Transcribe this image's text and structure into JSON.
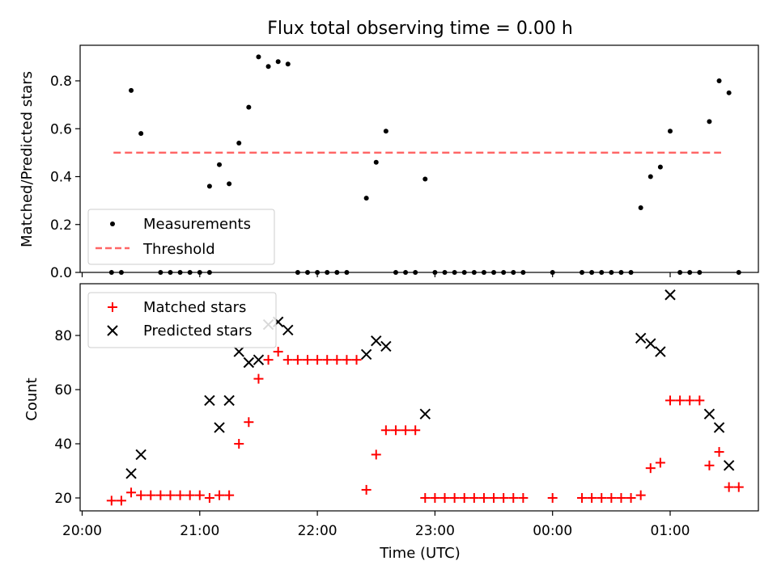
{
  "chart_data": [
    {
      "type": "scatter",
      "title": "Flux total observing time = 0.00 h",
      "ylabel": "Matched/Predicted stars",
      "ylim": [
        0,
        0.95
      ],
      "yticks": [
        "0.0",
        "0.2",
        "0.4",
        "0.6",
        "0.8"
      ],
      "legend": {
        "location": "lower-left",
        "entries": [
          "Measurements",
          "Threshold"
        ]
      },
      "threshold": {
        "value": 0.5,
        "x_start": "20:16",
        "x_end": "01:26",
        "color": "#ff6666"
      },
      "series": [
        {
          "name": "Measurements",
          "marker": "dot",
          "color": "#000000",
          "points": [
            [
              "20:15",
              0.0
            ],
            [
              "20:20",
              0.0
            ],
            [
              "20:25",
              0.76
            ],
            [
              "20:30",
              0.58
            ],
            [
              "20:40",
              0.0
            ],
            [
              "20:45",
              0.0
            ],
            [
              "20:50",
              0.0
            ],
            [
              "20:55",
              0.0
            ],
            [
              "21:00",
              0.0
            ],
            [
              "21:05",
              0.0
            ],
            [
              "21:05",
              0.36
            ],
            [
              "21:10",
              0.45
            ],
            [
              "21:15",
              0.37
            ],
            [
              "21:20",
              0.54
            ],
            [
              "21:25",
              0.69
            ],
            [
              "21:30",
              0.9
            ],
            [
              "21:35",
              0.86
            ],
            [
              "21:40",
              0.88
            ],
            [
              "21:45",
              0.87
            ],
            [
              "21:50",
              0.0
            ],
            [
              "21:55",
              0.0
            ],
            [
              "22:00",
              0.0
            ],
            [
              "22:05",
              0.0
            ],
            [
              "22:10",
              0.0
            ],
            [
              "22:15",
              0.0
            ],
            [
              "22:25",
              0.31
            ],
            [
              "22:30",
              0.46
            ],
            [
              "22:35",
              0.59
            ],
            [
              "22:40",
              0.0
            ],
            [
              "22:45",
              0.0
            ],
            [
              "22:50",
              0.0
            ],
            [
              "22:55",
              0.39
            ],
            [
              "23:00",
              0.0
            ],
            [
              "23:05",
              0.0
            ],
            [
              "23:10",
              0.0
            ],
            [
              "23:15",
              0.0
            ],
            [
              "23:20",
              0.0
            ],
            [
              "23:25",
              0.0
            ],
            [
              "23:30",
              0.0
            ],
            [
              "23:35",
              0.0
            ],
            [
              "23:40",
              0.0
            ],
            [
              "23:45",
              0.0
            ],
            [
              "00:00",
              0.0
            ],
            [
              "00:15",
              0.0
            ],
            [
              "00:20",
              0.0
            ],
            [
              "00:25",
              0.0
            ],
            [
              "00:30",
              0.0
            ],
            [
              "00:35",
              0.0
            ],
            [
              "00:40",
              0.0
            ],
            [
              "00:45",
              0.27
            ],
            [
              "00:50",
              0.4
            ],
            [
              "00:55",
              0.44
            ],
            [
              "01:00",
              0.59
            ],
            [
              "01:05",
              0.0
            ],
            [
              "01:10",
              0.0
            ],
            [
              "01:15",
              0.0
            ],
            [
              "01:20",
              0.63
            ],
            [
              "01:25",
              0.8
            ],
            [
              "01:30",
              0.75
            ],
            [
              "01:35",
              0.0
            ]
          ]
        }
      ]
    },
    {
      "type": "scatter",
      "xlabel": "Time (UTC)",
      "ylabel": "Count",
      "xticks": [
        "20:00",
        "21:00",
        "22:00",
        "23:00",
        "00:00",
        "01:00"
      ],
      "ylim": [
        15,
        98
      ],
      "yticks": [
        "20",
        "40",
        "60",
        "80"
      ],
      "legend": {
        "location": "top-left",
        "entries": [
          "Matched stars",
          "Predicted stars"
        ]
      },
      "series": [
        {
          "name": "Matched stars",
          "marker": "plus",
          "color": "#ff0000",
          "points": [
            [
              "20:15",
              19
            ],
            [
              "20:20",
              19
            ],
            [
              "20:25",
              22
            ],
            [
              "20:30",
              21
            ],
            [
              "20:35",
              21
            ],
            [
              "20:40",
              21
            ],
            [
              "20:45",
              21
            ],
            [
              "20:50",
              21
            ],
            [
              "20:55",
              21
            ],
            [
              "21:00",
              21
            ],
            [
              "21:05",
              20
            ],
            [
              "21:10",
              21
            ],
            [
              "21:15",
              21
            ],
            [
              "21:20",
              40
            ],
            [
              "21:25",
              48
            ],
            [
              "21:30",
              64
            ],
            [
              "21:35",
              71
            ],
            [
              "21:40",
              74
            ],
            [
              "21:45",
              71
            ],
            [
              "21:50",
              71
            ],
            [
              "21:55",
              71
            ],
            [
              "22:00",
              71
            ],
            [
              "22:05",
              71
            ],
            [
              "22:10",
              71
            ],
            [
              "22:15",
              71
            ],
            [
              "22:20",
              71
            ],
            [
              "22:25",
              23
            ],
            [
              "22:30",
              36
            ],
            [
              "22:35",
              45
            ],
            [
              "22:40",
              45
            ],
            [
              "22:45",
              45
            ],
            [
              "22:50",
              45
            ],
            [
              "22:55",
              20
            ],
            [
              "23:00",
              20
            ],
            [
              "23:05",
              20
            ],
            [
              "23:10",
              20
            ],
            [
              "23:15",
              20
            ],
            [
              "23:20",
              20
            ],
            [
              "23:25",
              20
            ],
            [
              "23:30",
              20
            ],
            [
              "23:35",
              20
            ],
            [
              "23:40",
              20
            ],
            [
              "23:45",
              20
            ],
            [
              "00:00",
              20
            ],
            [
              "00:15",
              20
            ],
            [
              "00:20",
              20
            ],
            [
              "00:25",
              20
            ],
            [
              "00:30",
              20
            ],
            [
              "00:35",
              20
            ],
            [
              "00:40",
              20
            ],
            [
              "00:45",
              21
            ],
            [
              "00:50",
              31
            ],
            [
              "00:55",
              33
            ],
            [
              "01:00",
              56
            ],
            [
              "01:05",
              56
            ],
            [
              "01:10",
              56
            ],
            [
              "01:15",
              56
            ],
            [
              "01:20",
              32
            ],
            [
              "01:25",
              37
            ],
            [
              "01:30",
              24
            ],
            [
              "01:35",
              24
            ]
          ]
        },
        {
          "name": "Predicted stars",
          "marker": "x",
          "color": "#000000",
          "points": [
            [
              "20:25",
              29
            ],
            [
              "20:30",
              36
            ],
            [
              "21:05",
              56
            ],
            [
              "21:10",
              46
            ],
            [
              "21:15",
              56
            ],
            [
              "21:20",
              74
            ],
            [
              "21:25",
              70
            ],
            [
              "21:30",
              71
            ],
            [
              "21:35",
              84
            ],
            [
              "21:40",
              85
            ],
            [
              "21:45",
              82
            ],
            [
              "22:25",
              73
            ],
            [
              "22:30",
              78
            ],
            [
              "22:35",
              76
            ],
            [
              "22:55",
              51
            ],
            [
              "00:45",
              79
            ],
            [
              "00:50",
              77
            ],
            [
              "00:55",
              74
            ],
            [
              "01:00",
              95
            ],
            [
              "01:20",
              51
            ],
            [
              "01:25",
              46
            ],
            [
              "01:30",
              32
            ]
          ]
        }
      ]
    }
  ]
}
